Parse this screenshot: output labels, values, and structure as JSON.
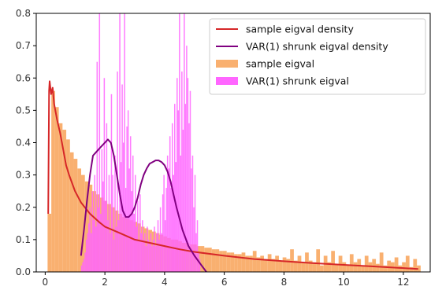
{
  "chart_data": {
    "type": "bar",
    "title": "",
    "xlabel": "",
    "ylabel": "",
    "xlim": [
      -0.3,
      12.9
    ],
    "ylim": [
      0,
      0.8
    ],
    "grid": false,
    "legend_placement": "top-right",
    "x_ticks": [
      0,
      2,
      4,
      6,
      8,
      10,
      12
    ],
    "y_ticks": [
      0.0,
      0.1,
      0.2,
      0.3,
      0.4,
      0.5,
      0.6,
      0.7,
      0.8
    ],
    "x_tick_labels": [
      "0",
      "2",
      "4",
      "6",
      "8",
      "10",
      "12"
    ],
    "y_tick_labels": [
      "0.0",
      "0.1",
      "0.2",
      "0.3",
      "0.4",
      "0.5",
      "0.6",
      "0.7",
      "0.8"
    ],
    "series": [
      {
        "name": "sample eigval density",
        "kind": "line",
        "color": "#d62728",
        "x": [
          0.1,
          0.13,
          0.15,
          0.2,
          0.25,
          0.3,
          0.4,
          0.5,
          0.6,
          0.7,
          0.8,
          1.0,
          1.2,
          1.5,
          1.8,
          2.0,
          2.5,
          3.0,
          3.5,
          4.0,
          4.5,
          5.0,
          6.0,
          7.0,
          8.0,
          9.0,
          10.0,
          11.0,
          12.0,
          12.5
        ],
        "y": [
          0.18,
          0.56,
          0.59,
          0.55,
          0.57,
          0.52,
          0.47,
          0.43,
          0.38,
          0.33,
          0.3,
          0.25,
          0.215,
          0.18,
          0.155,
          0.14,
          0.12,
          0.1,
          0.09,
          0.08,
          0.07,
          0.062,
          0.05,
          0.04,
          0.033,
          0.027,
          0.022,
          0.017,
          0.012,
          0.009
        ]
      },
      {
        "name": "VAR(1) shrunk eigval density",
        "kind": "line",
        "color": "#800080",
        "x": [
          1.2,
          1.3,
          1.4,
          1.5,
          1.6,
          1.7,
          1.8,
          1.9,
          2.0,
          2.1,
          2.2,
          2.3,
          2.4,
          2.5,
          2.6,
          2.7,
          2.8,
          2.9,
          3.0,
          3.1,
          3.2,
          3.3,
          3.4,
          3.5,
          3.6,
          3.7,
          3.8,
          3.9,
          4.0,
          4.1,
          4.2,
          4.3,
          4.4,
          4.6,
          4.8,
          5.0,
          5.2,
          5.4
        ],
        "y": [
          0.05,
          0.13,
          0.22,
          0.3,
          0.36,
          0.37,
          0.38,
          0.39,
          0.4,
          0.41,
          0.4,
          0.36,
          0.3,
          0.24,
          0.19,
          0.17,
          0.17,
          0.18,
          0.2,
          0.23,
          0.27,
          0.3,
          0.32,
          0.335,
          0.34,
          0.345,
          0.345,
          0.34,
          0.33,
          0.31,
          0.28,
          0.24,
          0.2,
          0.13,
          0.08,
          0.05,
          0.025,
          0.0
        ]
      },
      {
        "name": "sample eigval",
        "kind": "hist",
        "color": "#f9b070",
        "bin_start": 0.08,
        "bin_width": 0.125,
        "values": [
          0.18,
          0.56,
          0.51,
          0.46,
          0.44,
          0.41,
          0.37,
          0.35,
          0.32,
          0.3,
          0.28,
          0.27,
          0.25,
          0.24,
          0.23,
          0.22,
          0.21,
          0.2,
          0.19,
          0.18,
          0.17,
          0.165,
          0.16,
          0.155,
          0.15,
          0.14,
          0.135,
          0.13,
          0.125,
          0.12,
          0.115,
          0.11,
          0.105,
          0.1,
          0.1,
          0.095,
          0.09,
          0.09,
          0.085,
          0.085,
          0.08,
          0.08,
          0.075,
          0.075,
          0.07,
          0.07,
          0.065,
          0.065,
          0.06,
          0.06,
          0.055,
          0.055,
          0.06,
          0.05,
          0.05,
          0.065,
          0.045,
          0.05,
          0.04,
          0.055,
          0.04,
          0.05,
          0.035,
          0.045,
          0.04,
          0.07,
          0.035,
          0.05,
          0.03,
          0.06,
          0.035,
          0.03,
          0.07,
          0.02,
          0.05,
          0.03,
          0.065,
          0.025,
          0.05,
          0.03,
          0.02,
          0.055,
          0.03,
          0.04,
          0.02,
          0.05,
          0.03,
          0.04,
          0.025,
          0.06,
          0.02,
          0.035,
          0.03,
          0.045,
          0.02,
          0.03,
          0.05,
          0.015,
          0.04,
          0.02
        ]
      },
      {
        "name": "VAR(1) shrunk eigval",
        "kind": "hist",
        "color": "#ff66ff",
        "bin_start": 1.2,
        "bin_width": 0.04,
        "values": [
          0.02,
          0.03,
          0.04,
          0.06,
          0.1,
          0.12,
          0.15,
          0.2,
          0.12,
          0.25,
          0.16,
          0.3,
          0.14,
          0.65,
          0.2,
          0.8,
          0.18,
          0.38,
          0.28,
          0.6,
          0.22,
          0.46,
          0.16,
          0.3,
          0.12,
          0.55,
          0.3,
          0.1,
          0.36,
          0.14,
          0.62,
          0.16,
          0.8,
          0.34,
          0.58,
          0.4,
          0.8,
          0.26,
          0.45,
          0.5,
          0.32,
          0.42,
          0.25,
          0.36,
          0.18,
          0.3,
          0.14,
          0.22,
          0.1,
          0.24,
          0.12,
          0.16,
          0.1,
          0.12,
          0.08,
          0.14,
          0.1,
          0.09,
          0.12,
          0.08,
          0.1,
          0.14,
          0.08,
          0.12,
          0.16,
          0.1,
          0.2,
          0.12,
          0.24,
          0.3,
          0.16,
          0.26,
          0.36,
          0.32,
          0.42,
          0.26,
          0.46,
          0.3,
          0.52,
          0.34,
          0.6,
          0.5,
          0.8,
          0.36,
          0.62,
          0.44,
          0.8,
          0.52,
          0.7,
          0.6,
          0.46,
          0.56,
          0.32,
          0.36,
          0.2,
          0.3,
          0.12,
          0.16,
          0.06,
          0.04
        ]
      }
    ]
  }
}
